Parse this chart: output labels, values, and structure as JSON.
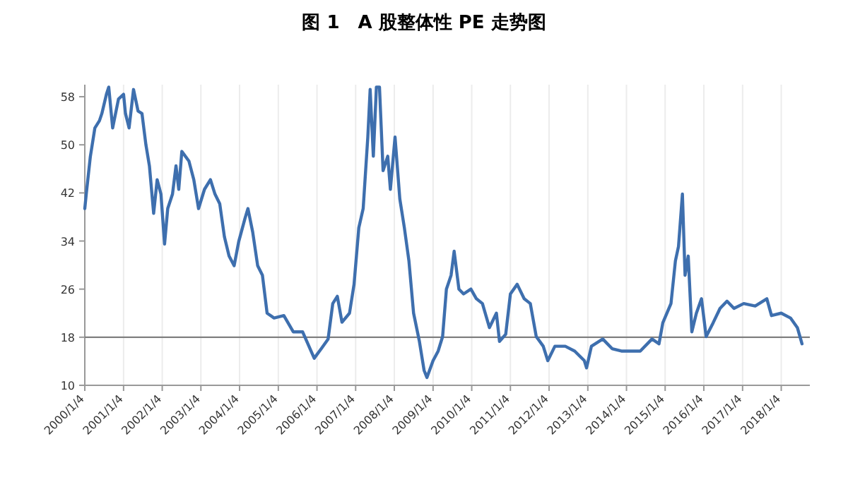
{
  "chart_data": {
    "type": "line",
    "title": "图 1　A 股整体性 PE 走势图",
    "x": [
      "2000-01-04",
      "2000-01-19",
      "2000-02-25",
      "2000-04-08",
      "2000-05-21",
      "2000-06-13",
      "2000-07-26",
      "2000-08-17",
      "2000-09-23",
      "2000-11-17",
      "2001-01-04",
      "2001-01-22",
      "2001-02-25",
      "2001-04-08",
      "2001-05-21",
      "2001-06-27",
      "2001-08-03",
      "2001-09-05",
      "2001-10-15",
      "2001-11-17",
      "2001-12-23",
      "2002-01-26",
      "2002-02-25",
      "2002-04-11",
      "2002-05-14",
      "2002-06-09",
      "2002-07-08",
      "2002-09-13",
      "2002-10-29",
      "2002-12-13",
      "2003-02-07",
      "2003-04-04",
      "2003-05-17",
      "2003-07-01",
      "2003-08-14",
      "2003-09-27",
      "2003-11-14",
      "2003-12-27",
      "2004-02-25",
      "2004-03-23",
      "2004-05-07",
      "2004-06-23",
      "2004-08-07",
      "2004-09-20",
      "2004-11-25",
      "2005-02-25",
      "2005-05-25",
      "2005-08-21",
      "2005-12-09",
      "2006-02-14",
      "2006-04-19",
      "2006-06-02",
      "2006-07-15",
      "2006-08-28",
      "2006-11-07",
      "2006-12-20",
      "2007-02-03",
      "2007-03-16",
      "2007-04-29",
      "2007-05-21",
      "2007-06-20",
      "2007-07-19",
      "2007-08-17",
      "2007-09-20",
      "2007-11-03",
      "2007-11-28",
      "2008-01-11",
      "2008-02-25",
      "2008-04-08",
      "2008-05-21",
      "2008-07-04",
      "2008-08-28",
      "2008-10-11",
      "2008-11-07",
      "2009-01-04",
      "2009-02-21",
      "2009-04-04",
      "2009-05-10",
      "2009-06-23",
      "2009-07-22",
      "2009-09-05",
      "2009-10-19",
      "2009-12-27",
      "2010-02-17",
      "2010-04-15",
      "2010-06-20",
      "2010-08-25",
      "2010-09-23",
      "2010-11-21",
      "2011-01-04",
      "2011-03-09",
      "2011-05-14",
      "2011-07-11",
      "2011-09-05",
      "2011-11-10",
      "2011-12-23",
      "2012-02-28",
      "2012-06-05",
      "2012-09-02",
      "2012-12-02",
      "2012-12-23",
      "2013-02-07",
      "2013-05-25",
      "2013-08-21",
      "2013-11-17",
      "2014-02-17",
      "2014-05-14",
      "2014-09-02",
      "2014-11-07",
      "2014-12-13",
      "2015-02-28",
      "2015-04-11",
      "2015-05-10",
      "2015-06-16",
      "2015-07-11",
      "2015-08-10",
      "2015-09-13",
      "2015-10-26",
      "2015-12-13",
      "2016-01-26",
      "2016-04-01",
      "2016-06-05",
      "2016-08-10",
      "2016-10-15",
      "2017-01-15",
      "2017-05-03",
      "2017-08-21",
      "2017-10-04",
      "2018-01-04",
      "2018-04-01",
      "2018-06-05",
      "2018-07-19"
    ],
    "series": [
      {
        "color": "#3e6fae",
        "values": [
          39.4,
          42,
          48,
          52.8,
          54,
          55.2,
          58.4,
          59.6,
          52.8,
          57.6,
          58.4,
          55.2,
          52.8,
          59.2,
          55.6,
          55.2,
          50,
          46.5,
          38.6,
          44.2,
          41.8,
          33.5,
          39.4,
          41.8,
          46.5,
          42.6,
          48.9,
          47.3,
          44.2,
          39.4,
          42.6,
          44.2,
          41.8,
          40.2,
          34.7,
          31.5,
          29.9,
          33.9,
          37.8,
          39.4,
          35.5,
          29.9,
          28.3,
          22,
          21.2,
          21.6,
          18.9,
          18.9,
          14.5,
          16.1,
          17.7,
          23.6,
          24.8,
          20.5,
          22,
          26.8,
          36.2,
          39.4,
          51.3,
          59.2,
          48.1,
          59.6,
          59.6,
          45.7,
          48.1,
          42.6,
          51.3,
          41,
          36.2,
          30.7,
          22,
          17.3,
          12.5,
          11.3,
          14.1,
          15.7,
          18.1,
          26,
          28.3,
          32.3,
          26,
          25.2,
          26,
          24.4,
          23.6,
          19.6,
          22,
          17.3,
          18.5,
          25.2,
          26.8,
          24.4,
          23.6,
          18.1,
          16.5,
          14.1,
          16.5,
          16.5,
          15.7,
          14.1,
          12.9,
          16.5,
          17.7,
          16.1,
          15.7,
          15.7,
          15.7,
          17.7,
          16.9,
          20.4,
          23.6,
          30.7,
          33.1,
          41.8,
          28.3,
          31.5,
          18.9,
          22,
          24.4,
          18.1,
          20.4,
          22.8,
          24,
          22.8,
          23.6,
          23.2,
          24.4,
          21.6,
          22,
          21.2,
          19.6,
          16.9
        ]
      }
    ],
    "xlim": [
      "2000-01-04",
      "2018-10-01"
    ],
    "ylim": [
      10,
      60
    ],
    "xticks": [
      {
        "value": "2000-01-04",
        "label": "2000/1/4"
      },
      {
        "value": "2001-01-04",
        "label": "2001/1/4"
      },
      {
        "value": "2002-01-04",
        "label": "2002/1/4"
      },
      {
        "value": "2003-01-04",
        "label": "2003/1/4"
      },
      {
        "value": "2004-01-04",
        "label": "2004/1/4"
      },
      {
        "value": "2005-01-04",
        "label": "2005/1/4"
      },
      {
        "value": "2006-01-04",
        "label": "2006/1/4"
      },
      {
        "value": "2007-01-04",
        "label": "2007/1/4"
      },
      {
        "value": "2008-01-04",
        "label": "2008/1/4"
      },
      {
        "value": "2009-01-04",
        "label": "2009/1/4"
      },
      {
        "value": "2010-01-04",
        "label": "2010/1/4"
      },
      {
        "value": "2011-01-04",
        "label": "2011/1/4"
      },
      {
        "value": "2012-01-04",
        "label": "2012/1/4"
      },
      {
        "value": "2013-01-04",
        "label": "2013/1/4"
      },
      {
        "value": "2014-01-04",
        "label": "2014/1/4"
      },
      {
        "value": "2015-01-04",
        "label": "2015/1/4"
      },
      {
        "value": "2016-01-04",
        "label": "2016/1/4"
      },
      {
        "value": "2017-01-04",
        "label": "2017/1/4"
      },
      {
        "value": "2018-01-04",
        "label": "2018/1/4"
      }
    ],
    "yticks": [
      10,
      18,
      26,
      34,
      42,
      50,
      58
    ],
    "ref_lines": [
      {
        "axis": "y",
        "value": 18,
        "color": "#808080"
      }
    ],
    "grid": "x",
    "marker": "none",
    "line_style": "solid"
  }
}
